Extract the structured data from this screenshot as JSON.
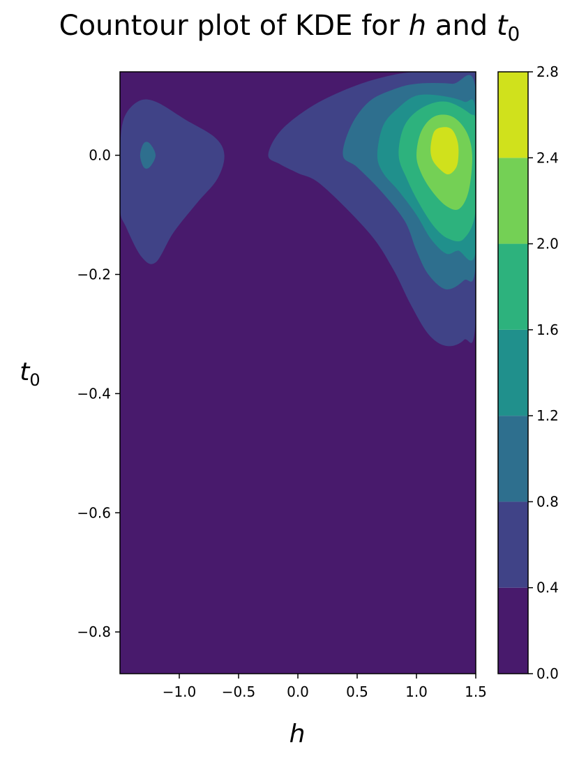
{
  "chart_data": {
    "type": "contour",
    "title_prefix": "Countour plot of KDE for ",
    "title_h": "h",
    "title_and": " and ",
    "title_t": "t",
    "title_sub": "0",
    "xlabel": "h",
    "ylabel": "t",
    "ylabel_sub": "0",
    "xlim": [
      -1.5,
      1.5
    ],
    "ylim": [
      -0.87,
      0.14
    ],
    "x_ticks": [
      -1.0,
      -0.5,
      0.0,
      0.5,
      1.0,
      1.5
    ],
    "x_tick_labels": [
      "−1.0",
      "−0.5",
      "0.0",
      "0.5",
      "1.0",
      "1.5"
    ],
    "y_ticks": [
      0.0,
      -0.2,
      -0.4,
      -0.6,
      -0.8
    ],
    "y_tick_labels": [
      "0.0",
      "−0.2",
      "−0.4",
      "−0.6",
      "−0.8"
    ],
    "levels": [
      0.0,
      0.4,
      0.8,
      1.2,
      1.6,
      2.0,
      2.4,
      2.8
    ],
    "level_labels": [
      "0.0",
      "0.4",
      "0.8",
      "1.2",
      "1.6",
      "2.0",
      "2.4",
      "2.8"
    ],
    "colors": [
      "#481a6c",
      "#404387",
      "#2e6f8e",
      "#20908c",
      "#2db27d",
      "#74d055",
      "#d0e11c"
    ],
    "regions": [
      {
        "name": "contour-left-0.4",
        "level": 0.4,
        "points": [
          [
            -1.5,
            0.0
          ],
          [
            -1.47,
            0.06
          ],
          [
            -1.35,
            0.09
          ],
          [
            -1.2,
            0.09
          ],
          [
            -0.95,
            0.06
          ],
          [
            -0.7,
            0.03
          ],
          [
            -0.62,
            0.0
          ],
          [
            -0.68,
            -0.04
          ],
          [
            -0.85,
            -0.08
          ],
          [
            -1.05,
            -0.13
          ],
          [
            -1.2,
            -0.18
          ],
          [
            -1.32,
            -0.17
          ],
          [
            -1.45,
            -0.12
          ],
          [
            -1.5,
            -0.09
          ]
        ]
      },
      {
        "name": "contour-left-0.8",
        "level": 0.8,
        "points": [
          [
            -1.33,
            0.0
          ],
          [
            -1.3,
            0.02
          ],
          [
            -1.25,
            0.02
          ],
          [
            -1.2,
            0.0
          ],
          [
            -1.25,
            -0.02
          ],
          [
            -1.3,
            -0.02
          ]
        ]
      },
      {
        "name": "contour-right-0.4",
        "level": 0.4,
        "points": [
          [
            -0.25,
            0.0
          ],
          [
            -0.15,
            0.04
          ],
          [
            0.1,
            0.08
          ],
          [
            0.4,
            0.11
          ],
          [
            0.7,
            0.13
          ],
          [
            1.0,
            0.14
          ],
          [
            1.5,
            0.14
          ],
          [
            1.5,
            -0.27
          ],
          [
            1.4,
            -0.31
          ],
          [
            1.25,
            -0.32
          ],
          [
            1.1,
            -0.3
          ],
          [
            0.95,
            -0.25
          ],
          [
            0.8,
            -0.19
          ],
          [
            0.6,
            -0.13
          ],
          [
            0.2,
            -0.05
          ],
          [
            0.0,
            -0.03
          ],
          [
            -0.15,
            -0.015
          ]
        ]
      },
      {
        "name": "contour-right-0.8",
        "level": 0.8,
        "points": [
          [
            0.38,
            0.0
          ],
          [
            0.45,
            0.05
          ],
          [
            0.6,
            0.09
          ],
          [
            0.8,
            0.11
          ],
          [
            1.0,
            0.12
          ],
          [
            1.3,
            0.12
          ],
          [
            1.5,
            0.11
          ],
          [
            1.5,
            -0.18
          ],
          [
            1.4,
            -0.21
          ],
          [
            1.25,
            -0.225
          ],
          [
            1.1,
            -0.2
          ],
          [
            1.0,
            -0.16
          ],
          [
            0.9,
            -0.11
          ],
          [
            0.7,
            -0.06
          ],
          [
            0.5,
            -0.02
          ]
        ]
      },
      {
        "name": "contour-right-1.2",
        "level": 1.2,
        "points": [
          [
            0.67,
            0.0
          ],
          [
            0.72,
            0.05
          ],
          [
            0.85,
            0.08
          ],
          [
            1.0,
            0.1
          ],
          [
            1.2,
            0.1
          ],
          [
            1.4,
            0.09
          ],
          [
            1.5,
            0.07
          ],
          [
            1.5,
            -0.16
          ],
          [
            1.35,
            -0.16
          ],
          [
            1.25,
            -0.165
          ],
          [
            1.12,
            -0.14
          ],
          [
            1.0,
            -0.1
          ],
          [
            0.85,
            -0.06
          ],
          [
            0.72,
            -0.03
          ]
        ]
      },
      {
        "name": "contour-right-1.6",
        "level": 1.6,
        "points": [
          [
            0.85,
            0.0
          ],
          [
            0.9,
            0.05
          ],
          [
            1.05,
            0.08
          ],
          [
            1.25,
            0.09
          ],
          [
            1.45,
            0.07
          ],
          [
            1.5,
            0.05
          ],
          [
            1.5,
            -0.09
          ],
          [
            1.4,
            -0.14
          ],
          [
            1.27,
            -0.14
          ],
          [
            1.15,
            -0.12
          ],
          [
            1.02,
            -0.08
          ],
          [
            0.92,
            -0.04
          ]
        ]
      },
      {
        "name": "contour-right-2.0",
        "level": 2.0,
        "points": [
          [
            1.0,
            0.0
          ],
          [
            1.04,
            0.04
          ],
          [
            1.15,
            0.065
          ],
          [
            1.3,
            0.065
          ],
          [
            1.42,
            0.04
          ],
          [
            1.47,
            0.0
          ],
          [
            1.44,
            -0.06
          ],
          [
            1.36,
            -0.09
          ],
          [
            1.25,
            -0.085
          ],
          [
            1.13,
            -0.06
          ],
          [
            1.04,
            -0.03
          ]
        ]
      },
      {
        "name": "contour-right-2.4",
        "level": 2.4,
        "points": [
          [
            1.12,
            0.015
          ],
          [
            1.15,
            0.04
          ],
          [
            1.22,
            0.047
          ],
          [
            1.3,
            0.043
          ],
          [
            1.35,
            0.02
          ],
          [
            1.35,
            -0.01
          ],
          [
            1.32,
            -0.025
          ],
          [
            1.26,
            -0.032
          ],
          [
            1.18,
            -0.02
          ],
          [
            1.13,
            -0.005
          ]
        ]
      }
    ]
  }
}
